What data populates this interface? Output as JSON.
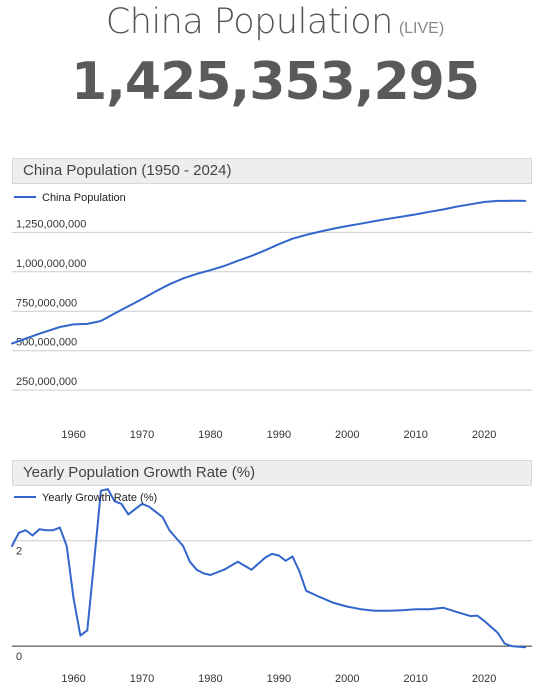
{
  "header": {
    "title": "China Population",
    "live_label": "(LIVE)",
    "counter": "1,425,353,295"
  },
  "colors": {
    "line": "#3366cc",
    "grid": "#cccccc",
    "header_bg": "#eeeeee"
  },
  "chart_data": [
    {
      "type": "line",
      "title": "China Population (1950 - 2024)",
      "legend": "top-left",
      "grid": true,
      "xlim": [
        1951,
        2027
      ],
      "ylim": [
        80000000,
        1550000000
      ],
      "x_ticks": [
        "1960",
        "1970",
        "1980",
        "1990",
        "2000",
        "2010",
        "2020"
      ],
      "y_ticks": [
        "1,250,000,000",
        "1,000,000,000",
        "750,000,000",
        "500,000,000",
        "250,000,000"
      ],
      "series": [
        {
          "name": "China Population",
          "x": [
            1951,
            1955,
            1958,
            1960,
            1962,
            1964,
            1966,
            1968,
            1970,
            1972,
            1974,
            1976,
            1978,
            1980,
            1982,
            1984,
            1986,
            1988,
            1990,
            1992,
            1994,
            1996,
            1998,
            2000,
            2002,
            2004,
            2006,
            2008,
            2010,
            2012,
            2014,
            2016,
            2018,
            2020,
            2022,
            2024,
            2026
          ],
          "y": [
            546000000,
            608000000,
            650000000,
            667000000,
            670000000,
            688000000,
            736000000,
            782000000,
            827000000,
            876000000,
            921000000,
            958000000,
            987000000,
            1010000000,
            1037000000,
            1070000000,
            1101000000,
            1136000000,
            1175000000,
            1210000000,
            1234000000,
            1255000000,
            1274000000,
            1290000000,
            1305000000,
            1321000000,
            1336000000,
            1350000000,
            1364000000,
            1380000000,
            1395000000,
            1413000000,
            1428000000,
            1442000000,
            1449000000,
            1450000000,
            1449000000
          ]
        }
      ]
    },
    {
      "type": "line",
      "title": "Yearly Population Growth Rate (%)",
      "legend": "top-left",
      "grid": true,
      "xlim": [
        1951,
        2027
      ],
      "ylim": [
        -0.7,
        3.02
      ],
      "x_ticks": [
        "1960",
        "1970",
        "1980",
        "1990",
        "2000",
        "2010",
        "2020"
      ],
      "y_ticks": [
        "2",
        "0"
      ],
      "series": [
        {
          "name": "Yearly Growth Rate (%)",
          "x": [
            1951,
            1952,
            1953,
            1954,
            1955,
            1956,
            1957,
            1958,
            1959,
            1960,
            1961,
            1962,
            1963,
            1964,
            1965,
            1966,
            1967,
            1968,
            1969,
            1970,
            1971,
            1972,
            1973,
            1974,
            1975,
            1976,
            1977,
            1978,
            1979,
            1980,
            1982,
            1984,
            1986,
            1988,
            1989,
            1990,
            1991,
            1992,
            1993,
            1994,
            1996,
            1998,
            2000,
            2002,
            2004,
            2006,
            2008,
            2010,
            2012,
            2014,
            2016,
            2018,
            2019,
            2020,
            2022,
            2023,
            2024,
            2026
          ],
          "y": [
            1.9,
            2.15,
            2.2,
            2.1,
            2.22,
            2.2,
            2.2,
            2.25,
            1.9,
            0.9,
            0.2,
            0.3,
            1.6,
            2.95,
            2.98,
            2.75,
            2.7,
            2.5,
            2.6,
            2.7,
            2.65,
            2.55,
            2.45,
            2.2,
            2.05,
            1.9,
            1.6,
            1.45,
            1.38,
            1.35,
            1.45,
            1.6,
            1.45,
            1.68,
            1.75,
            1.72,
            1.62,
            1.7,
            1.42,
            1.05,
            0.93,
            0.82,
            0.75,
            0.7,
            0.67,
            0.67,
            0.68,
            0.7,
            0.7,
            0.73,
            0.65,
            0.57,
            0.58,
            0.48,
            0.25,
            0.05,
            0.0,
            -0.02
          ]
        }
      ]
    }
  ]
}
